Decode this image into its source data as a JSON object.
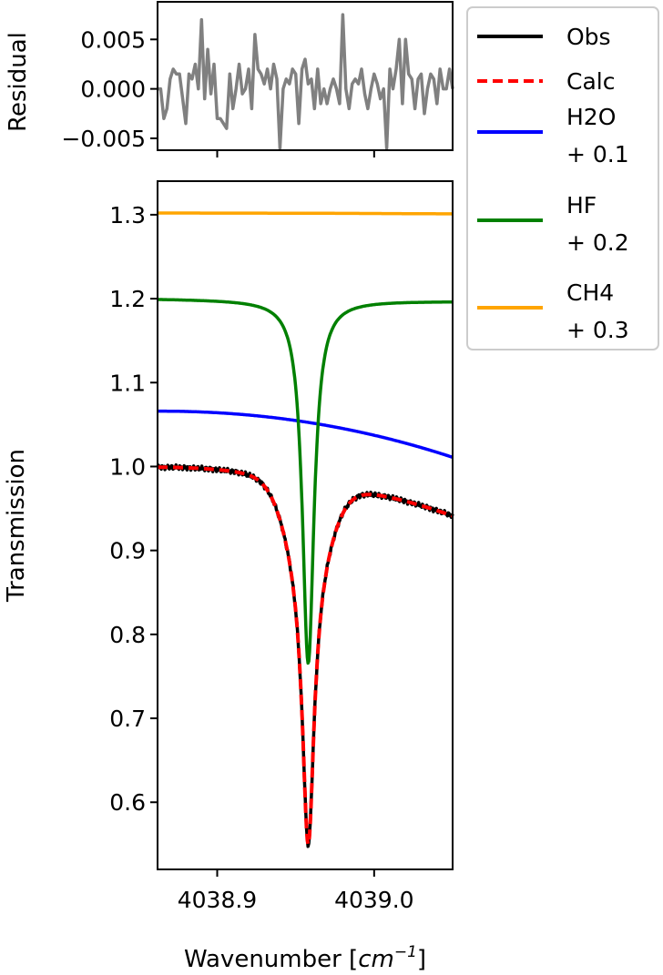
{
  "chart_data": [
    {
      "type": "line",
      "panel": "residual",
      "ylabel": "Residual",
      "xlim": [
        4038.862,
        4039.05
      ],
      "ylim": [
        -0.0062,
        0.0088
      ],
      "yticks": [
        0.005,
        0.0,
        -0.005
      ],
      "ytick_labels": [
        "0.005",
        "0.000",
        "−0.005"
      ],
      "xticks": [
        4038.9,
        4039.0
      ],
      "grid": false,
      "series": [
        {
          "color": "#808080",
          "x": [
            4038.862,
            4038.864,
            4038.866,
            4038.868,
            4038.87,
            4038.872,
            4038.874,
            4038.876,
            4038.878,
            4038.88,
            4038.882,
            4038.884,
            4038.886,
            4038.888,
            4038.89,
            4038.892,
            4038.894,
            4038.896,
            4038.898,
            4038.9,
            4038.902,
            4038.904,
            4038.906,
            4038.908,
            4038.91,
            4038.912,
            4038.914,
            4038.916,
            4038.918,
            4038.92,
            4038.922,
            4038.924,
            4038.926,
            4038.928,
            4038.93,
            4038.932,
            4038.934,
            4038.936,
            4038.938,
            4038.94,
            4038.942,
            4038.944,
            4038.946,
            4038.948,
            4038.95,
            4038.952,
            4038.954,
            4038.956,
            4038.958,
            4038.96,
            4038.962,
            4038.964,
            4038.966,
            4038.968,
            4038.97,
            4038.972,
            4038.974,
            4038.976,
            4038.978,
            4038.98,
            4038.982,
            4038.984,
            4038.986,
            4038.988,
            4038.99,
            4038.992,
            4038.994,
            4038.996,
            4038.998,
            4039.0,
            4039.002,
            4039.004,
            4039.006,
            4039.008,
            4039.01,
            4039.012,
            4039.014,
            4039.016,
            4039.018,
            4039.02,
            4039.022,
            4039.024,
            4039.026,
            4039.028,
            4039.03,
            4039.032,
            4039.034,
            4039.036,
            4039.038,
            4039.04,
            4039.042,
            4039.044,
            4039.046,
            4039.048,
            4039.05
          ],
          "values": [
            0.0,
            0.0,
            -0.003,
            -0.002,
            0.001,
            0.002,
            0.0015,
            0.0015,
            -0.001,
            -0.0035,
            0.0015,
            0.001,
            0.0025,
            0.0,
            0.007,
            -0.001,
            0.004,
            -0.0005,
            0.0025,
            -0.003,
            -0.003,
            -0.0035,
            -0.004,
            0.0015,
            -0.002,
            0.0,
            0.0025,
            -0.0005,
            0.0,
            0.002,
            -0.002,
            0.0055,
            0.002,
            0.0015,
            0.0005,
            0.002,
            0.0,
            0.0025,
            0.001,
            -0.006,
            0.0,
            0.001,
            0.0005,
            0.002,
            0.0015,
            -0.0035,
            0.002,
            0.003,
            0.0005,
            0.001,
            -0.002,
            0.002,
            -0.0015,
            0.0,
            -0.0015,
            0.0,
            0.001,
            0.0,
            -0.0015,
            0.0075,
            0.0,
            -0.002,
            0.0005,
            0.001,
            0.0005,
            0.002,
            -0.0005,
            -0.002,
            0.0,
            0.0015,
            0.0005,
            -0.001,
            0.0,
            -0.006,
            0.002,
            0.0,
            0.002,
            0.005,
            -0.0015,
            0.005,
            0.0015,
            0.001,
            -0.002,
            0.001,
            0.0015,
            -0.0025,
            0.0,
            0.0015,
            0.001,
            -0.0015,
            0.002,
            0.0,
            0.0,
            0.002,
            0.0
          ]
        }
      ]
    },
    {
      "type": "line",
      "panel": "main",
      "xlabel": "Wavenumber [cm⁻¹]",
      "xlabel_prefix": "Wavenumber [",
      "xlabel_unit": "cm",
      "xlabel_exp": "−1",
      "xlabel_suffix": "]",
      "ylabel": "Transmission",
      "xlim": [
        4038.862,
        4039.05
      ],
      "ylim": [
        0.52,
        1.34
      ],
      "yticks": [
        0.6,
        0.7,
        0.8,
        0.9,
        1.0,
        1.1,
        1.2,
        1.3
      ],
      "ytick_labels": [
        "0.6",
        "0.7",
        "0.8",
        "0.9",
        "1.0",
        "1.1",
        "1.2",
        "1.3"
      ],
      "xticks": [
        4038.9,
        4039.0
      ],
      "xtick_labels": [
        "4038.9",
        "4039.0"
      ],
      "grid": false,
      "legend": "outside-right",
      "line_center": 4038.958,
      "series": [
        {
          "name": "Obs",
          "color": "#000000",
          "style": "solid",
          "depth": 0.437,
          "width": 0.0045,
          "base": 1.0,
          "slope_end": 0.942
        },
        {
          "name": "Calc",
          "color": "#ff0000",
          "style": "dashed",
          "depth": 0.437,
          "width": 0.0045,
          "base": 1.0,
          "slope_end": 0.942
        },
        {
          "name": "H2O\n+ 0.1",
          "label_lines": [
            "H2O",
            "+ 0.1"
          ],
          "color": "#0000ff",
          "style": "solid",
          "start": 1.066,
          "end": 1.011
        },
        {
          "name": "HF\n+ 0.2",
          "label_lines": [
            "HF",
            "+ 0.2"
          ],
          "color": "#008000",
          "style": "solid",
          "depth": 0.433,
          "width": 0.0045,
          "base": 1.2,
          "end": 1.197
        },
        {
          "name": "CH4\n+ 0.3",
          "label_lines": [
            "CH4",
            "+ 0.3"
          ],
          "color": "#ffa500",
          "style": "solid",
          "start": 1.302,
          "end": 1.301
        }
      ]
    }
  ]
}
